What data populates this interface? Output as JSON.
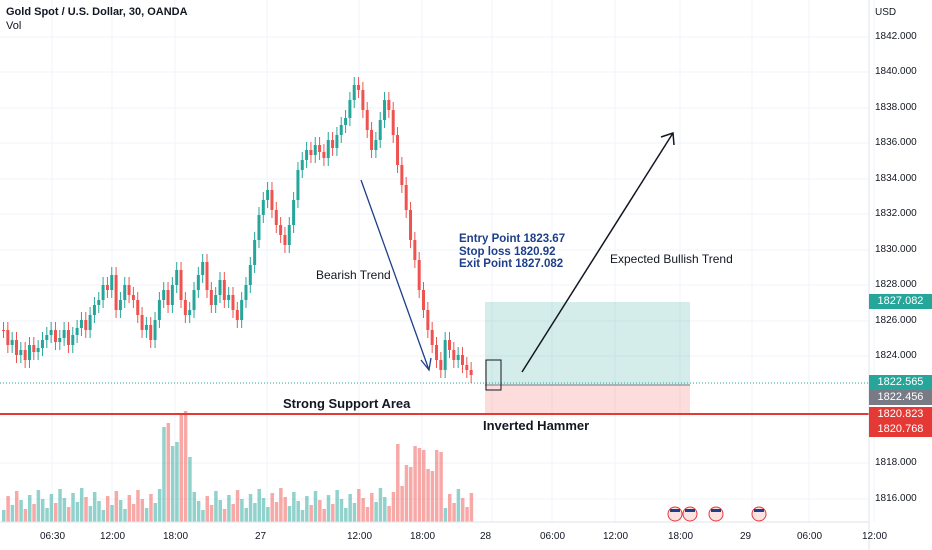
{
  "legend": {
    "symbol": "Gold Spot / U.S. Dollar, 30, OANDA",
    "indicator": "Vol"
  },
  "currency": "USD",
  "price_axis": [
    "1842.000",
    "1840.000",
    "1838.000",
    "1836.000",
    "1834.000",
    "1832.000",
    "1830.000",
    "1828.000",
    "1826.000",
    "1824.000",
    "1818.000",
    "1816.000"
  ],
  "time_axis": [
    "06:30",
    "12:00",
    "18:00",
    "27",
    "12:00",
    "18:00",
    "28",
    "06:00",
    "12:00",
    "18:00",
    "29",
    "06:00",
    "12:00"
  ],
  "price_tags": [
    {
      "label": "1827.082",
      "color": "#26a69a"
    },
    {
      "label": "1822.565",
      "color": "#26a69a"
    },
    {
      "label": "1822.456",
      "color": "#787b86"
    },
    {
      "label": "1820.823",
      "color": "#e53935"
    },
    {
      "label": "1820.768",
      "color": "#e53935"
    }
  ],
  "annotations": {
    "bearish": "Bearish Trend",
    "bullish": "Expected Bullish Trend",
    "support": "Strong Support Area",
    "hammer": "Inverted Hammer",
    "entry": "Entry Point 1823.67",
    "stop": "Stop loss 1820.92",
    "exit": "Exit Point 1827.082"
  },
  "colors": {
    "up": "#26a69a",
    "down": "#ef5350",
    "support_line": "#e53935",
    "arrow": "#1e3f8a"
  },
  "icons": [
    "us-flag-icon",
    "us-flag-icon",
    "us-flag-icon",
    "us-flag-icon",
    "us-flag-icon"
  ]
}
